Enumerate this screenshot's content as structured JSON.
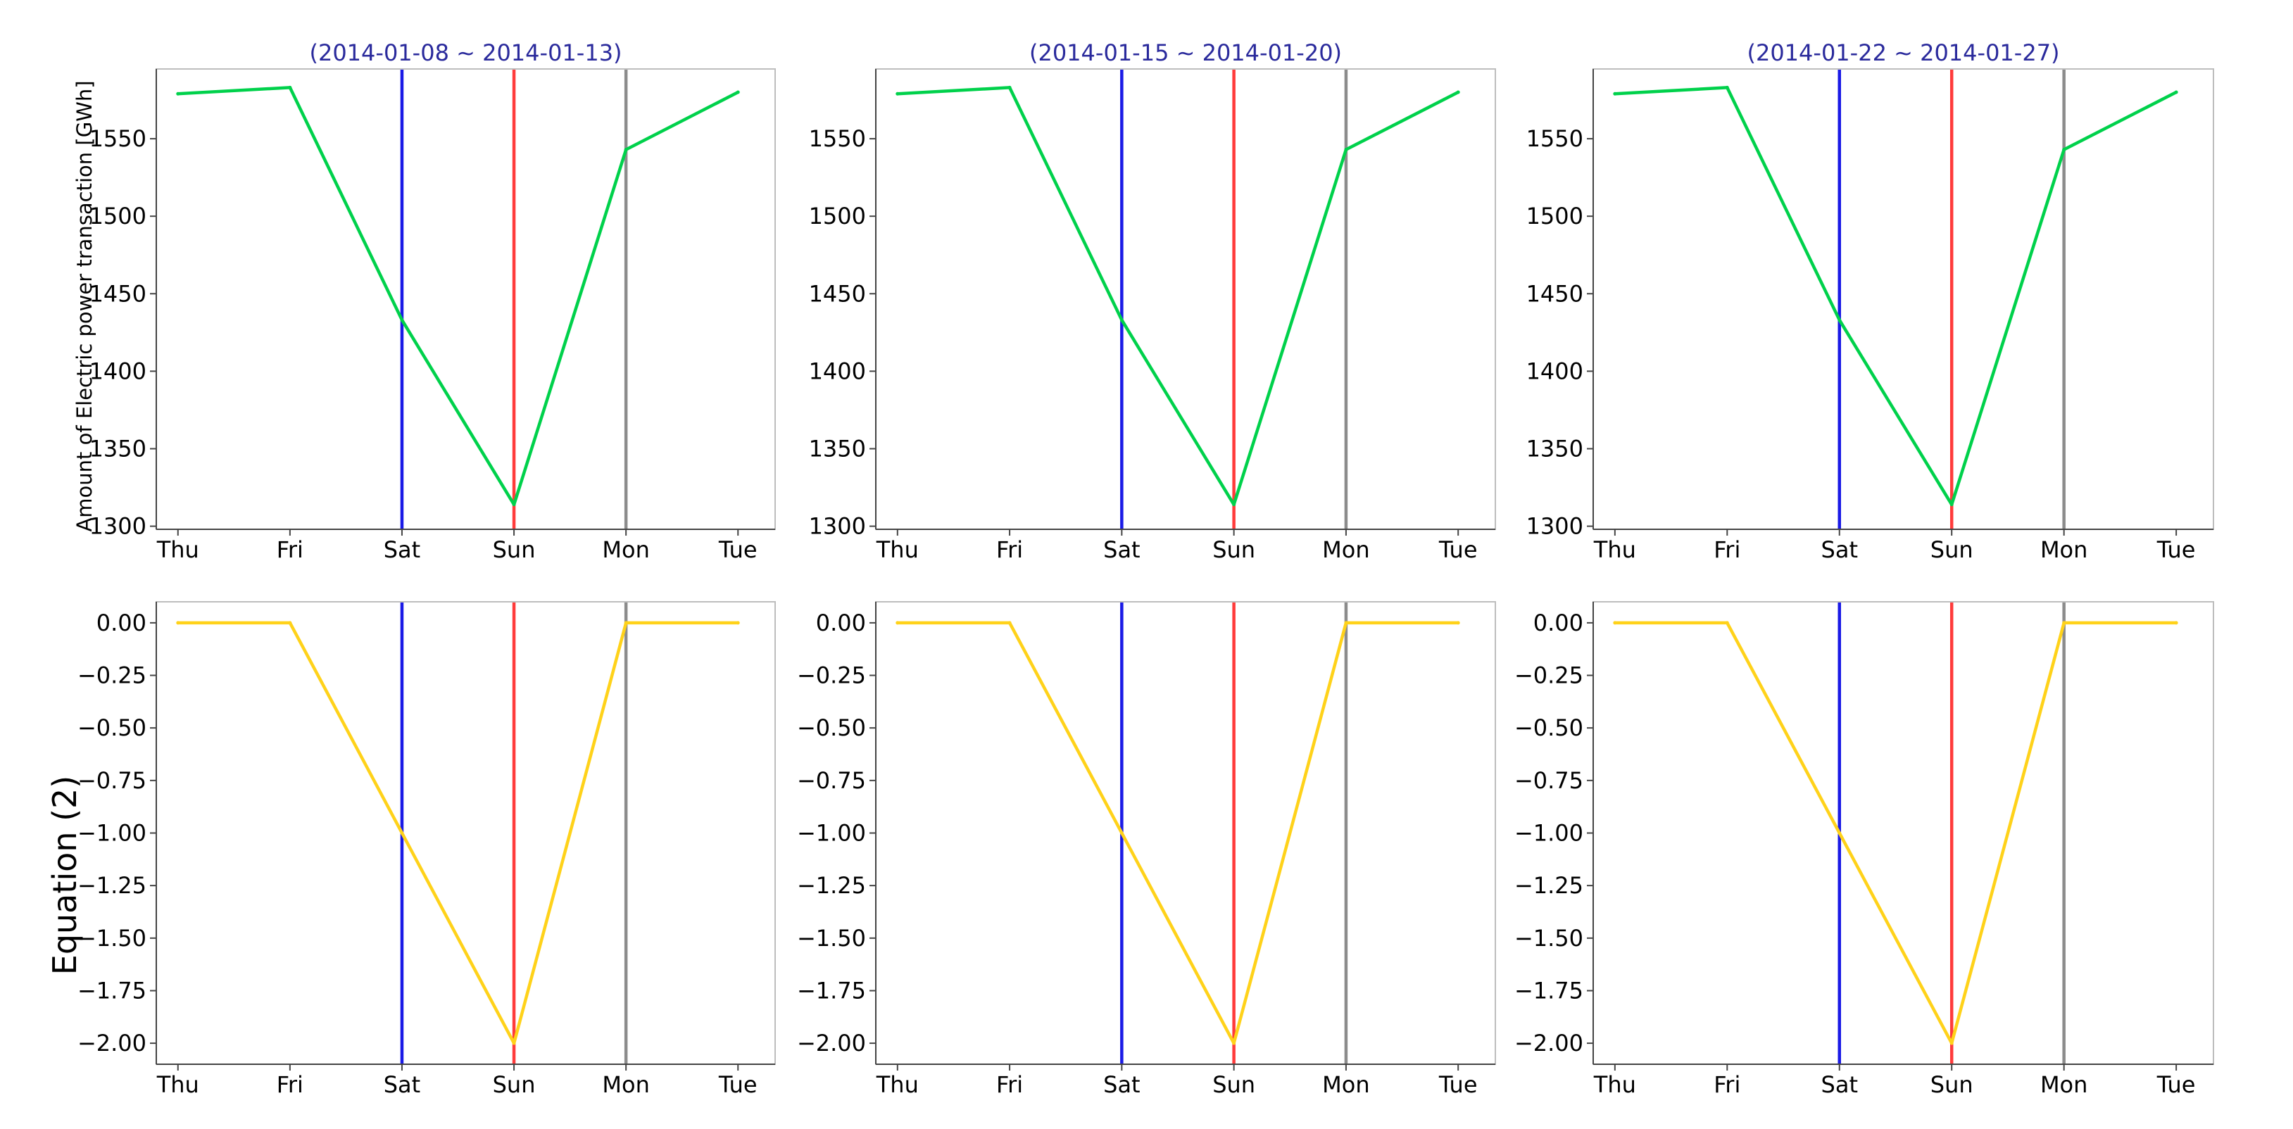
{
  "chart_data": [
    {
      "type": "line",
      "title": "(2014-01-08 ~ 2014-01-13)",
      "title_color": "#2a2a9c",
      "ylabel": "Amount of Electric power transaction [GWh]",
      "categories": [
        "Thu",
        "Fri",
        "Sat",
        "Sun",
        "Mon",
        "Tue"
      ],
      "ylim": [
        1298,
        1595
      ],
      "yticks": [
        1300,
        1350,
        1400,
        1450,
        1500,
        1550
      ],
      "ytick_labels": [
        "1300",
        "1350",
        "1400",
        "1450",
        "1500",
        "1550"
      ],
      "series": [
        {
          "color": "#00d14b",
          "values": [
            1579,
            1583,
            1433,
            1314,
            1543,
            1580
          ]
        }
      ],
      "vlines": [
        {
          "category": "Sat",
          "color": "#1a1ae6"
        },
        {
          "category": "Sun",
          "color": "#ff3b3b"
        },
        {
          "category": "Mon",
          "color": "#8c8c8c"
        }
      ]
    },
    {
      "type": "line",
      "title": "(2014-01-15 ~ 2014-01-20)",
      "title_color": "#2a2a9c",
      "ylabel": "",
      "categories": [
        "Thu",
        "Fri",
        "Sat",
        "Sun",
        "Mon",
        "Tue"
      ],
      "ylim": [
        1298,
        1595
      ],
      "yticks": [
        1300,
        1350,
        1400,
        1450,
        1500,
        1550
      ],
      "ytick_labels": [
        "1300",
        "1350",
        "1400",
        "1450",
        "1500",
        "1550"
      ],
      "series": [
        {
          "color": "#00d14b",
          "values": [
            1579,
            1583,
            1433,
            1314,
            1543,
            1580
          ]
        }
      ],
      "vlines": [
        {
          "category": "Sat",
          "color": "#1a1ae6"
        },
        {
          "category": "Sun",
          "color": "#ff3b3b"
        },
        {
          "category": "Mon",
          "color": "#8c8c8c"
        }
      ]
    },
    {
      "type": "line",
      "title": "(2014-01-22 ~ 2014-01-27)",
      "title_color": "#2a2a9c",
      "ylabel": "",
      "categories": [
        "Thu",
        "Fri",
        "Sat",
        "Sun",
        "Mon",
        "Tue"
      ],
      "ylim": [
        1298,
        1595
      ],
      "yticks": [
        1300,
        1350,
        1400,
        1450,
        1500,
        1550
      ],
      "ytick_labels": [
        "1300",
        "1350",
        "1400",
        "1450",
        "1500",
        "1550"
      ],
      "series": [
        {
          "color": "#00d14b",
          "values": [
            1579,
            1583,
            1433,
            1314,
            1543,
            1580
          ]
        }
      ],
      "vlines": [
        {
          "category": "Sat",
          "color": "#1a1ae6"
        },
        {
          "category": "Sun",
          "color": "#ff3b3b"
        },
        {
          "category": "Mon",
          "color": "#8c8c8c"
        }
      ]
    },
    {
      "type": "line",
      "title": "",
      "ylabel": "Equation (2)",
      "categories": [
        "Thu",
        "Fri",
        "Sat",
        "Sun",
        "Mon",
        "Tue"
      ],
      "ylim": [
        -2.1,
        0.1
      ],
      "yticks": [
        0,
        -0.25,
        -0.5,
        -0.75,
        -1.0,
        -1.25,
        -1.5,
        -1.75,
        -2.0
      ],
      "ytick_labels": [
        "0.00",
        "−0.25",
        "−0.50",
        "−0.75",
        "−1.00",
        "−1.25",
        "−1.50",
        "−1.75",
        "−2.00"
      ],
      "series": [
        {
          "color": "#ffd21a",
          "values": [
            0,
            0,
            -1,
            -2,
            0,
            0
          ]
        }
      ],
      "vlines": [
        {
          "category": "Sat",
          "color": "#1a1ae6"
        },
        {
          "category": "Sun",
          "color": "#ff3b3b"
        },
        {
          "category": "Mon",
          "color": "#8c8c8c"
        }
      ]
    },
    {
      "type": "line",
      "title": "",
      "ylabel": "",
      "categories": [
        "Thu",
        "Fri",
        "Sat",
        "Sun",
        "Mon",
        "Tue"
      ],
      "ylim": [
        -2.1,
        0.1
      ],
      "yticks": [
        0,
        -0.25,
        -0.5,
        -0.75,
        -1.0,
        -1.25,
        -1.5,
        -1.75,
        -2.0
      ],
      "ytick_labels": [
        "0.00",
        "−0.25",
        "−0.50",
        "−0.75",
        "−1.00",
        "−1.25",
        "−1.50",
        "−1.75",
        "−2.00"
      ],
      "series": [
        {
          "color": "#ffd21a",
          "values": [
            0,
            0,
            -1,
            -2,
            0,
            0
          ]
        }
      ],
      "vlines": [
        {
          "category": "Sat",
          "color": "#1a1ae6"
        },
        {
          "category": "Sun",
          "color": "#ff3b3b"
        },
        {
          "category": "Mon",
          "color": "#8c8c8c"
        }
      ]
    },
    {
      "type": "line",
      "title": "",
      "ylabel": "",
      "categories": [
        "Thu",
        "Fri",
        "Sat",
        "Sun",
        "Mon",
        "Tue"
      ],
      "ylim": [
        -2.1,
        0.1
      ],
      "yticks": [
        0,
        -0.25,
        -0.5,
        -0.75,
        -1.0,
        -1.25,
        -1.5,
        -1.75,
        -2.0
      ],
      "ytick_labels": [
        "0.00",
        "−0.25",
        "−0.50",
        "−0.75",
        "−1.00",
        "−1.25",
        "−1.50",
        "−1.75",
        "−2.00"
      ],
      "series": [
        {
          "color": "#ffd21a",
          "values": [
            0,
            0,
            -1,
            -2,
            0,
            0
          ]
        }
      ],
      "vlines": [
        {
          "category": "Sat",
          "color": "#1a1ae6"
        },
        {
          "category": "Sun",
          "color": "#ff3b3b"
        },
        {
          "category": "Mon",
          "color": "#8c8c8c"
        }
      ]
    }
  ]
}
